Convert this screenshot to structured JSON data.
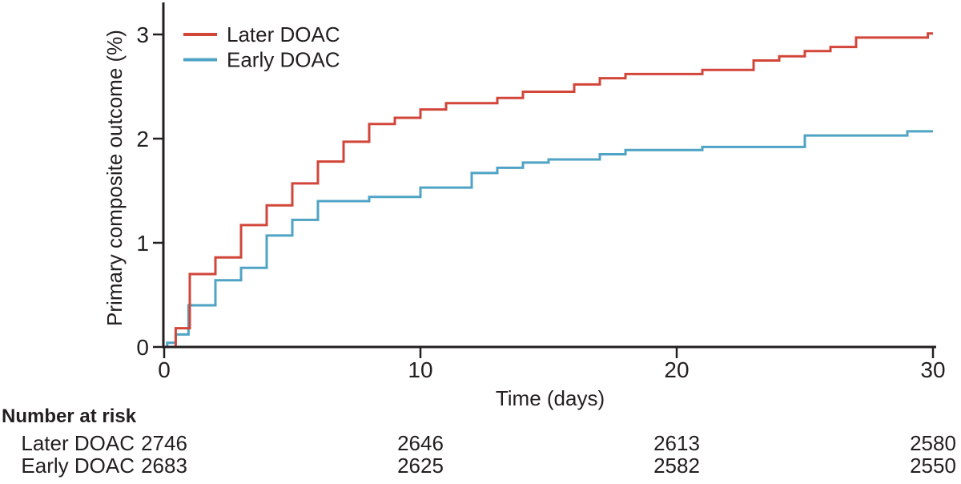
{
  "chart_data": {
    "type": "line",
    "subtype": "step-cumulative-incidence",
    "title": "",
    "xlabel": "Time (days)",
    "ylabel": "Primary composite outcome (%)",
    "xlim": [
      0,
      30
    ],
    "ylim": [
      0,
      3
    ],
    "xticks": [
      0,
      10,
      20,
      30
    ],
    "yticks": [
      0,
      1,
      2,
      3
    ],
    "grid": false,
    "legend_position": "top-left",
    "series": [
      {
        "name": "Later DOAC",
        "color": "#d2463a",
        "points": [
          [
            0,
            0
          ],
          [
            0.45,
            0.18
          ],
          [
            1,
            0.7
          ],
          [
            2,
            0.86
          ],
          [
            3,
            1.17
          ],
          [
            4,
            1.36
          ],
          [
            5,
            1.57
          ],
          [
            6,
            1.78
          ],
          [
            7,
            1.97
          ],
          [
            8,
            2.14
          ],
          [
            9,
            2.2
          ],
          [
            10,
            2.28
          ],
          [
            11,
            2.34
          ],
          [
            13,
            2.39
          ],
          [
            14,
            2.45
          ],
          [
            16,
            2.52
          ],
          [
            17,
            2.58
          ],
          [
            18,
            2.62
          ],
          [
            21,
            2.66
          ],
          [
            23,
            2.75
          ],
          [
            24,
            2.79
          ],
          [
            25,
            2.84
          ],
          [
            26,
            2.88
          ],
          [
            27,
            2.97
          ],
          [
            29.8,
            3.01
          ],
          [
            30,
            3.01
          ]
        ]
      },
      {
        "name": "Early DOAC",
        "color": "#4fa3c4",
        "points": [
          [
            0,
            0
          ],
          [
            0.12,
            0.04
          ],
          [
            0.45,
            0.12
          ],
          [
            0.95,
            0.4
          ],
          [
            2,
            0.64
          ],
          [
            3,
            0.76
          ],
          [
            4,
            1.07
          ],
          [
            5,
            1.22
          ],
          [
            6,
            1.4
          ],
          [
            8,
            1.44
          ],
          [
            10,
            1.53
          ],
          [
            12,
            1.67
          ],
          [
            13,
            1.72
          ],
          [
            14,
            1.77
          ],
          [
            15,
            1.8
          ],
          [
            17,
            1.85
          ],
          [
            18,
            1.89
          ],
          [
            21,
            1.92
          ],
          [
            25,
            2.03
          ],
          [
            29,
            2.07
          ],
          [
            30,
            2.07
          ]
        ]
      }
    ]
  },
  "risk_table": {
    "title": "Number at risk",
    "time_points": [
      0,
      10,
      20,
      30
    ],
    "rows": [
      {
        "label": "Later DOAC",
        "values": [
          "2746",
          "2646",
          "2613",
          "2580"
        ]
      },
      {
        "label": "Early DOAC",
        "values": [
          "2683",
          "2625",
          "2582",
          "2550"
        ]
      }
    ]
  },
  "colors": {
    "axis": "#231f20",
    "text": "#231f20",
    "background": "#ffffff",
    "later_doac": "#d2463a",
    "early_doac": "#4fa3c4"
  }
}
